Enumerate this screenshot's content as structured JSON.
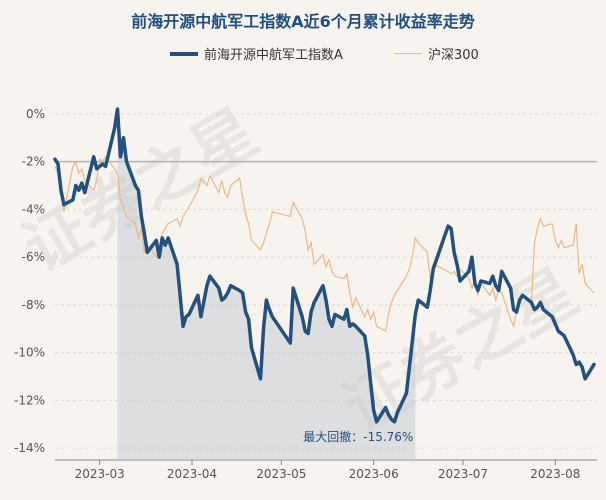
{
  "chart_data": {
    "type": "line",
    "title": "前海开源中航军工指数A近6个月累计收益率走势",
    "xlabel": "",
    "ylabel": "",
    "ylim": [
      -14.5,
      1.0
    ],
    "y_ticks": [
      0,
      -2,
      -4,
      -6,
      -8,
      -10,
      -12,
      -14
    ],
    "y_tick_labels": [
      "0%",
      "-2%",
      "-4%",
      "-6%",
      "-8%",
      "-10%",
      "-12%",
      "-14%"
    ],
    "x_range": [
      "2023-02-14",
      "2023-08-15"
    ],
    "x_ticks": [
      "2023-03-01",
      "2023-04-01",
      "2023-05-01",
      "2023-06-01",
      "2023-07-01",
      "2023-08-01"
    ],
    "x_tick_labels": [
      "2023-03",
      "2023-04",
      "2023-05",
      "2023-06",
      "2023-07",
      "2023-08"
    ],
    "grid": "horizontal",
    "legend_position": "top",
    "series": [
      {
        "name": "前海开源中航军工指数A",
        "color": "#23507f",
        "points": [
          [
            "2023-02-14",
            -1.9
          ],
          [
            "2023-02-15",
            -2.1
          ],
          [
            "2023-02-16",
            -3.2
          ],
          [
            "2023-02-17",
            -3.8
          ],
          [
            "2023-02-20",
            -3.6
          ],
          [
            "2023-02-21",
            -3.0
          ],
          [
            "2023-02-22",
            -3.2
          ],
          [
            "2023-02-23",
            -2.9
          ],
          [
            "2023-02-24",
            -3.3
          ],
          [
            "2023-02-27",
            -1.8
          ],
          [
            "2023-02-28",
            -2.3
          ],
          [
            "2023-03-01",
            -2.2
          ],
          [
            "2023-03-02",
            -2.1
          ],
          [
            "2023-03-03",
            -2.2
          ],
          [
            "2023-03-06",
            -0.6
          ],
          [
            "2023-03-07",
            0.2
          ],
          [
            "2023-03-08",
            -1.8
          ],
          [
            "2023-03-09",
            -1.0
          ],
          [
            "2023-03-10",
            -2.0
          ],
          [
            "2023-03-13",
            -3.0
          ],
          [
            "2023-03-14",
            -3.2
          ],
          [
            "2023-03-15",
            -4.3
          ],
          [
            "2023-03-16",
            -5.0
          ],
          [
            "2023-03-17",
            -5.8
          ],
          [
            "2023-03-20",
            -5.3
          ],
          [
            "2023-03-21",
            -6.0
          ],
          [
            "2023-03-22",
            -5.2
          ],
          [
            "2023-03-23",
            -5.5
          ],
          [
            "2023-03-24",
            -5.2
          ],
          [
            "2023-03-27",
            -6.3
          ],
          [
            "2023-03-28",
            -7.6
          ],
          [
            "2023-03-29",
            -8.9
          ],
          [
            "2023-03-30",
            -8.5
          ],
          [
            "2023-03-31",
            -8.4
          ],
          [
            "2023-04-03",
            -7.6
          ],
          [
            "2023-04-04",
            -8.5
          ],
          [
            "2023-04-06",
            -7.2
          ],
          [
            "2023-04-07",
            -6.8
          ],
          [
            "2023-04-10",
            -7.3
          ],
          [
            "2023-04-11",
            -7.8
          ],
          [
            "2023-04-12",
            -7.7
          ],
          [
            "2023-04-13",
            -7.5
          ],
          [
            "2023-04-14",
            -7.2
          ],
          [
            "2023-04-17",
            -7.4
          ],
          [
            "2023-04-18",
            -7.5
          ],
          [
            "2023-04-19",
            -8.3
          ],
          [
            "2023-04-20",
            -8.6
          ],
          [
            "2023-04-21",
            -9.8
          ],
          [
            "2023-04-24",
            -11.1
          ],
          [
            "2023-04-25",
            -9.0
          ],
          [
            "2023-04-26",
            -7.8
          ],
          [
            "2023-04-27",
            -8.2
          ],
          [
            "2023-04-28",
            -8.5
          ],
          [
            "2023-05-04",
            -9.6
          ],
          [
            "2023-05-05",
            -7.3
          ],
          [
            "2023-05-08",
            -8.5
          ],
          [
            "2023-05-09",
            -9.1
          ],
          [
            "2023-05-10",
            -9.2
          ],
          [
            "2023-05-11",
            -8.3
          ],
          [
            "2023-05-12",
            -7.9
          ],
          [
            "2023-05-15",
            -7.2
          ],
          [
            "2023-05-16",
            -7.8
          ],
          [
            "2023-05-17",
            -8.6
          ],
          [
            "2023-05-18",
            -8.9
          ],
          [
            "2023-05-19",
            -8.4
          ],
          [
            "2023-05-22",
            -8.6
          ],
          [
            "2023-05-23",
            -8.2
          ],
          [
            "2023-05-24",
            -8.9
          ],
          [
            "2023-05-25",
            -8.8
          ],
          [
            "2023-05-26",
            -8.9
          ],
          [
            "2023-05-29",
            -9.3
          ],
          [
            "2023-05-30",
            -10.1
          ],
          [
            "2023-05-31",
            -11.3
          ],
          [
            "2023-06-01",
            -12.4
          ],
          [
            "2023-06-02",
            -12.9
          ],
          [
            "2023-06-05",
            -12.3
          ],
          [
            "2023-06-06",
            -12.6
          ],
          [
            "2023-06-07",
            -12.8
          ],
          [
            "2023-06-08",
            -12.9
          ],
          [
            "2023-06-09",
            -12.5
          ],
          [
            "2023-06-12",
            -11.7
          ],
          [
            "2023-06-13",
            -10.6
          ],
          [
            "2023-06-14",
            -9.5
          ],
          [
            "2023-06-15",
            -8.4
          ],
          [
            "2023-06-16",
            -7.8
          ],
          [
            "2023-06-19",
            -8.1
          ],
          [
            "2023-06-20",
            -7.4
          ],
          [
            "2023-06-21",
            -6.5
          ],
          [
            "2023-06-26",
            -4.7
          ],
          [
            "2023-06-27",
            -4.8
          ],
          [
            "2023-06-28",
            -5.8
          ],
          [
            "2023-06-29",
            -6.3
          ],
          [
            "2023-06-30",
            -7.0
          ],
          [
            "2023-07-03",
            -6.6
          ],
          [
            "2023-07-04",
            -6.0
          ],
          [
            "2023-07-05",
            -7.1
          ],
          [
            "2023-07-06",
            -7.4
          ],
          [
            "2023-07-07",
            -7.0
          ],
          [
            "2023-07-10",
            -7.1
          ],
          [
            "2023-07-11",
            -6.8
          ],
          [
            "2023-07-12",
            -7.2
          ],
          [
            "2023-07-13",
            -7.4
          ],
          [
            "2023-07-14",
            -6.6
          ],
          [
            "2023-07-17",
            -7.3
          ],
          [
            "2023-07-18",
            -8.2
          ],
          [
            "2023-07-19",
            -8.3
          ],
          [
            "2023-07-20",
            -7.8
          ],
          [
            "2023-07-21",
            -7.6
          ],
          [
            "2023-07-24",
            -7.9
          ],
          [
            "2023-07-25",
            -8.2
          ],
          [
            "2023-07-26",
            -8.1
          ],
          [
            "2023-07-27",
            -7.9
          ],
          [
            "2023-07-28",
            -8.2
          ],
          [
            "2023-07-31",
            -8.5
          ],
          [
            "2023-08-01",
            -8.8
          ],
          [
            "2023-08-02",
            -9.1
          ],
          [
            "2023-08-03",
            -9.2
          ],
          [
            "2023-08-04",
            -9.3
          ],
          [
            "2023-08-07",
            -10.1
          ],
          [
            "2023-08-08",
            -10.5
          ],
          [
            "2023-08-09",
            -10.4
          ],
          [
            "2023-08-10",
            -10.6
          ],
          [
            "2023-08-11",
            -11.1
          ],
          [
            "2023-08-14",
            -10.5
          ]
        ]
      },
      {
        "name": "沪深300",
        "color": "#e9b98a",
        "points": [
          [
            "2023-02-14",
            -2.2
          ],
          [
            "2023-02-15",
            -2.5
          ],
          [
            "2023-02-16",
            -3.4
          ],
          [
            "2023-02-17",
            -4.1
          ],
          [
            "2023-02-20",
            -2.2
          ],
          [
            "2023-02-21",
            -2.0
          ],
          [
            "2023-02-22",
            -2.5
          ],
          [
            "2023-02-23",
            -2.3
          ],
          [
            "2023-02-24",
            -2.8
          ],
          [
            "2023-02-27",
            -3.2
          ],
          [
            "2023-02-28",
            -2.8
          ],
          [
            "2023-03-01",
            -1.9
          ],
          [
            "2023-03-02",
            -2.0
          ],
          [
            "2023-03-03",
            -1.8
          ],
          [
            "2023-03-06",
            -2.3
          ],
          [
            "2023-03-07",
            -2.5
          ],
          [
            "2023-03-08",
            -3.6
          ],
          [
            "2023-03-09",
            -3.9
          ],
          [
            "2023-03-10",
            -4.3
          ],
          [
            "2023-03-13",
            -4.6
          ],
          [
            "2023-03-14",
            -5.2
          ],
          [
            "2023-03-15",
            -4.8
          ],
          [
            "2023-03-16",
            -5.8
          ],
          [
            "2023-03-17",
            -5.5
          ],
          [
            "2023-03-20",
            -6.0
          ],
          [
            "2023-03-21",
            -5.6
          ],
          [
            "2023-03-22",
            -5.0
          ],
          [
            "2023-03-23",
            -4.8
          ],
          [
            "2023-03-24",
            -4.6
          ],
          [
            "2023-03-27",
            -4.4
          ],
          [
            "2023-03-28",
            -4.7
          ],
          [
            "2023-03-29",
            -4.3
          ],
          [
            "2023-03-30",
            -4.1
          ],
          [
            "2023-03-31",
            -3.9
          ],
          [
            "2023-04-03",
            -3.2
          ],
          [
            "2023-04-04",
            -2.7
          ],
          [
            "2023-04-06",
            -3.0
          ],
          [
            "2023-04-07",
            -2.6
          ],
          [
            "2023-04-10",
            -3.3
          ],
          [
            "2023-04-11",
            -2.8
          ],
          [
            "2023-04-12",
            -3.3
          ],
          [
            "2023-04-13",
            -3.5
          ],
          [
            "2023-04-14",
            -3.0
          ],
          [
            "2023-04-17",
            -2.7
          ],
          [
            "2023-04-18",
            -3.5
          ],
          [
            "2023-04-19",
            -4.2
          ],
          [
            "2023-04-20",
            -4.6
          ],
          [
            "2023-04-21",
            -5.3
          ],
          [
            "2023-04-24",
            -5.7
          ],
          [
            "2023-04-25",
            -5.4
          ],
          [
            "2023-04-26",
            -5.0
          ],
          [
            "2023-04-27",
            -4.6
          ],
          [
            "2023-04-28",
            -4.1
          ],
          [
            "2023-05-04",
            -4.3
          ],
          [
            "2023-05-05",
            -3.7
          ],
          [
            "2023-05-08",
            -4.4
          ],
          [
            "2023-05-09",
            -4.9
          ],
          [
            "2023-05-10",
            -5.7
          ],
          [
            "2023-05-11",
            -5.4
          ],
          [
            "2023-05-12",
            -6.3
          ],
          [
            "2023-05-15",
            -5.9
          ],
          [
            "2023-05-16",
            -6.4
          ],
          [
            "2023-05-17",
            -6.1
          ],
          [
            "2023-05-18",
            -6.6
          ],
          [
            "2023-05-19",
            -6.8
          ],
          [
            "2023-05-22",
            -6.9
          ],
          [
            "2023-05-23",
            -6.7
          ],
          [
            "2023-05-24",
            -7.5
          ],
          [
            "2023-05-25",
            -8.1
          ],
          [
            "2023-05-26",
            -7.7
          ],
          [
            "2023-05-29",
            -8.5
          ],
          [
            "2023-05-30",
            -8.2
          ],
          [
            "2023-05-31",
            -8.6
          ],
          [
            "2023-06-01",
            -8.3
          ],
          [
            "2023-06-02",
            -8.9
          ],
          [
            "2023-06-05",
            -9.1
          ],
          [
            "2023-06-06",
            -8.4
          ],
          [
            "2023-06-07",
            -7.9
          ],
          [
            "2023-06-08",
            -7.6
          ],
          [
            "2023-06-09",
            -7.4
          ],
          [
            "2023-06-12",
            -6.8
          ],
          [
            "2023-06-13",
            -6.5
          ],
          [
            "2023-06-14",
            -6.0
          ],
          [
            "2023-06-15",
            -5.2
          ],
          [
            "2023-06-16",
            -5.4
          ],
          [
            "2023-06-19",
            -5.8
          ],
          [
            "2023-06-20",
            -6.9
          ],
          [
            "2023-06-21",
            -6.3
          ],
          [
            "2023-06-26",
            -6.6
          ],
          [
            "2023-06-27",
            -6.7
          ],
          [
            "2023-06-28",
            -6.6
          ],
          [
            "2023-06-29",
            -6.8
          ],
          [
            "2023-06-30",
            -6.5
          ],
          [
            "2023-07-03",
            -6.9
          ],
          [
            "2023-07-04",
            -7.3
          ],
          [
            "2023-07-05",
            -7.0
          ],
          [
            "2023-07-06",
            -7.6
          ],
          [
            "2023-07-07",
            -7.1
          ],
          [
            "2023-07-10",
            -7.6
          ],
          [
            "2023-07-11",
            -7.3
          ],
          [
            "2023-07-12",
            -7.8
          ],
          [
            "2023-07-13",
            -7.4
          ],
          [
            "2023-07-14",
            -7.5
          ],
          [
            "2023-07-17",
            -8.6
          ],
          [
            "2023-07-18",
            -8.9
          ],
          [
            "2023-07-19",
            -8.2
          ],
          [
            "2023-07-20",
            -7.9
          ],
          [
            "2023-07-21",
            -7.6
          ],
          [
            "2023-07-24",
            -7.8
          ],
          [
            "2023-07-25",
            -5.4
          ],
          [
            "2023-07-26",
            -4.8
          ],
          [
            "2023-07-27",
            -4.4
          ],
          [
            "2023-07-28",
            -4.7
          ],
          [
            "2023-07-31",
            -4.6
          ],
          [
            "2023-08-01",
            -5.3
          ],
          [
            "2023-08-02",
            -5.6
          ],
          [
            "2023-08-03",
            -5.3
          ],
          [
            "2023-08-04",
            -5.6
          ],
          [
            "2023-08-07",
            -5.5
          ],
          [
            "2023-08-08",
            -4.6
          ],
          [
            "2023-08-09",
            -6.7
          ],
          [
            "2023-08-10",
            -6.3
          ],
          [
            "2023-08-11",
            -7.1
          ],
          [
            "2023-08-14",
            -7.5
          ]
        ]
      }
    ],
    "max_drawdown": {
      "label": "最大回撤：-15.76%",
      "start": "2023-03-07",
      "end": "2023-06-15"
    },
    "reference_line": -2
  },
  "watermark": "证券之星"
}
